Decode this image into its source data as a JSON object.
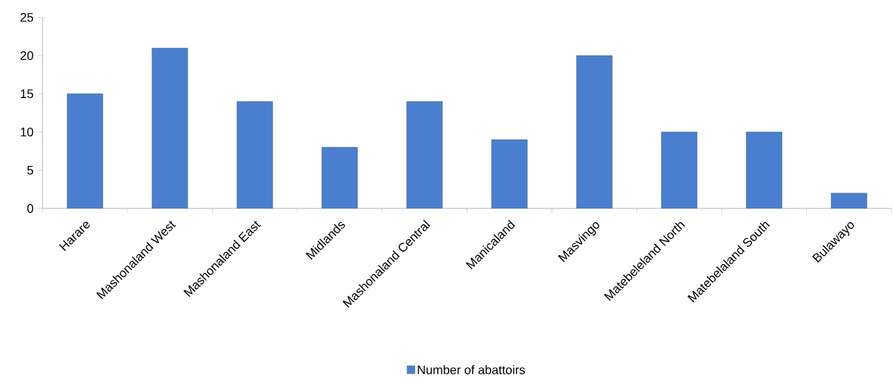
{
  "chart_data": {
    "type": "bar",
    "categories": [
      "Harare",
      "Mashonaland West",
      "Mashonaland East",
      "Midlands",
      "Mashonaland Central",
      "Manicaland",
      "Masvingo",
      "Matebeleland North",
      "Matebelaland South",
      "Bulawayo"
    ],
    "series": [
      {
        "name": "Number of abattoirs",
        "color": "#4a7fd0",
        "values": [
          15,
          21,
          14,
          8,
          14,
          9,
          20,
          10,
          10,
          2
        ]
      }
    ],
    "ylim": [
      0,
      25
    ],
    "yticks": [
      0,
      5,
      10,
      15,
      20,
      25
    ],
    "legend": "bottom"
  }
}
